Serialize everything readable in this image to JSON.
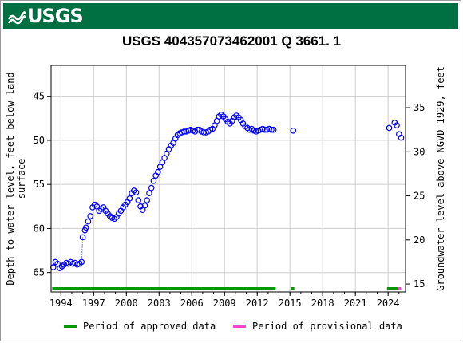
{
  "header": {
    "logo_text": "USGS",
    "logo_icon": "usgs-wave-icon",
    "banner_color": "#006f41"
  },
  "chart_data": {
    "type": "scatter",
    "title": "USGS 404357073462001 Q  3661. 1",
    "ylabel": "Depth to water level, feet below land surface",
    "ylabel_lines": [
      "Depth to water level, feet below land",
      "surface"
    ],
    "y2label": "Groundwater level above NGVD 1929, feet",
    "xlim": [
      1993.1,
      2025.6
    ],
    "ylim": [
      67.2,
      41.5
    ],
    "y_inverted": true,
    "y2lim": [
      14.1,
      39.8
    ],
    "x_ticks": [
      1994,
      1997,
      2000,
      2003,
      2006,
      2009,
      2012,
      2015,
      2018,
      2021,
      2024
    ],
    "y_ticks": [
      45,
      50,
      55,
      60,
      65
    ],
    "y2_ticks": [
      15,
      20,
      25,
      30,
      35
    ],
    "grid": true,
    "marker": "open-circle",
    "marker_color": "#0000ff",
    "series": [
      {
        "x": [
          1993.3,
          1993.5,
          1993.7,
          1993.9,
          1994.1,
          1994.3,
          1994.5,
          1994.7,
          1994.9,
          1995.1,
          1995.3,
          1995.5,
          1995.7,
          1995.9,
          1996.0,
          1996.2,
          1996.3,
          1996.5,
          1996.7,
          1996.9,
          1997.1,
          1997.3,
          1997.5,
          1997.7,
          1997.9,
          1998.1,
          1998.3,
          1998.5,
          1998.7,
          1998.9,
          1999.1,
          1999.3,
          1999.5,
          1999.7,
          1999.9,
          2000.1,
          2000.3,
          2000.5,
          2000.7,
          2000.9,
          2001.1,
          2001.3,
          2001.5,
          2001.7,
          2001.9,
          2002.1,
          2002.3,
          2002.5,
          2002.7,
          2002.9,
          2003.1,
          2003.3,
          2003.5,
          2003.7,
          2003.9,
          2004.1,
          2004.3,
          2004.5,
          2004.7,
          2004.9,
          2005.1,
          2005.3,
          2005.5,
          2005.7,
          2005.9,
          2006.1,
          2006.3,
          2006.5,
          2006.7,
          2006.9,
          2007.1,
          2007.3,
          2007.5,
          2007.7,
          2007.9,
          2008.1,
          2008.3,
          2008.5,
          2008.7,
          2008.9,
          2009.1,
          2009.3,
          2009.5,
          2009.7,
          2009.9,
          2010.1,
          2010.3,
          2010.5,
          2010.7,
          2010.9,
          2011.1,
          2011.3,
          2011.5,
          2011.7,
          2011.9,
          2012.1,
          2012.3,
          2012.5,
          2012.7,
          2012.9,
          2013.1,
          2013.3,
          2013.5
        ],
        "y": [
          64.4,
          63.8,
          64.0,
          64.5,
          64.3,
          64.1,
          63.9,
          64.0,
          63.8,
          64.0,
          63.9,
          64.1,
          64.0,
          63.8,
          61.0,
          60.2,
          59.9,
          59.2,
          58.6,
          57.6,
          57.3,
          57.5,
          58.0,
          57.8,
          57.6,
          58.0,
          58.3,
          58.6,
          58.8,
          58.9,
          58.7,
          58.3,
          58.0,
          57.6,
          57.3,
          57.0,
          56.6,
          56.0,
          55.7,
          55.9,
          56.8,
          57.5,
          57.9,
          57.4,
          56.8,
          56.0,
          55.4,
          54.6,
          54.0,
          53.6,
          53.0,
          52.5,
          52.0,
          51.5,
          51.0,
          50.6,
          50.3,
          49.8,
          49.4,
          49.2,
          49.1,
          49.0,
          49.0,
          48.9,
          48.8,
          48.9,
          49.0,
          48.8,
          48.8,
          49.0,
          49.1,
          49.1,
          49.0,
          48.8,
          48.7,
          48.3,
          47.8,
          47.3,
          47.1,
          47.3,
          47.6,
          47.9,
          48.1,
          47.8,
          47.4,
          47.2,
          47.4,
          47.7,
          48.1,
          48.4,
          48.6,
          48.8,
          48.7,
          48.9,
          49.0,
          48.9,
          48.8,
          48.7,
          48.8,
          48.8,
          48.7,
          48.8,
          48.8
        ]
      },
      {
        "x": [
          2015.3,
          2024.1,
          2024.6,
          2024.8,
          2025.0,
          2025.2
        ],
        "y": [
          48.9,
          48.6,
          48.0,
          48.3,
          49.3,
          49.7
        ]
      }
    ],
    "gap_connector": {
      "x": [
        1995.9,
        1996.0
      ],
      "y": [
        63.8,
        61.0
      ]
    },
    "approval_bars": [
      {
        "status": "approved",
        "x": [
          1993.2,
          2013.7
        ]
      },
      {
        "status": "approved",
        "x": [
          2015.1,
          2015.4
        ]
      },
      {
        "status": "approved",
        "x": [
          2023.9,
          2024.9
        ]
      },
      {
        "status": "provisional",
        "x": [
          2024.9,
          2025.2
        ]
      }
    ],
    "legend": [
      {
        "label": "Period of approved data",
        "color": "#009900"
      },
      {
        "label": "Period of provisional data",
        "color": "#ff44cc"
      }
    ]
  }
}
